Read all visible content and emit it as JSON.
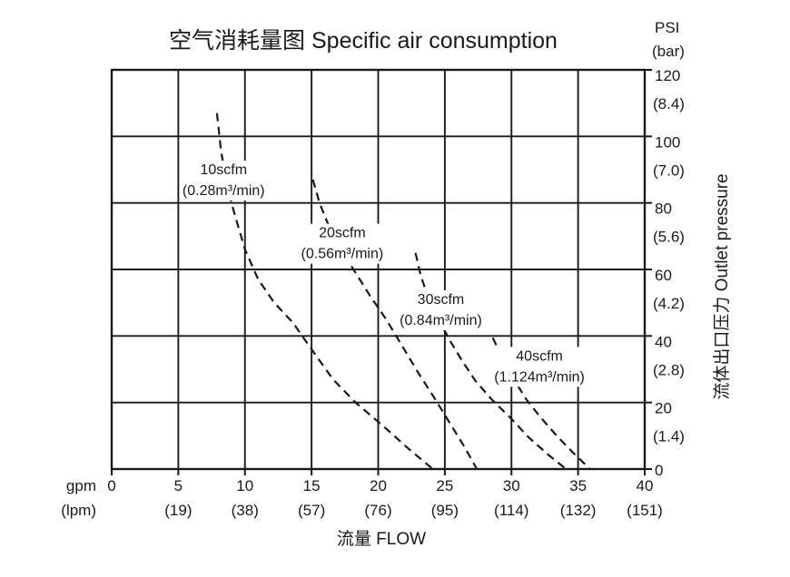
{
  "chart_data": {
    "type": "line",
    "title": "空气消耗量图 Specific air consumption",
    "grid": true,
    "line_style": "dashed",
    "line_color": "#1a1a1a",
    "x_axis": {
      "unit_primary": "gpm",
      "unit_secondary": "(lpm)",
      "title": "流量 FLOW",
      "range_gpm": [
        0,
        40
      ],
      "tick_step_gpm": 5,
      "ticks": [
        {
          "gpm": "0",
          "lpm": ""
        },
        {
          "gpm": "5",
          "lpm": "(19)"
        },
        {
          "gpm": "10",
          "lpm": "(38)"
        },
        {
          "gpm": "15",
          "lpm": "(57)"
        },
        {
          "gpm": "20",
          "lpm": "(76)"
        },
        {
          "gpm": "25",
          "lpm": "(95)"
        },
        {
          "gpm": "30",
          "lpm": "(114)"
        },
        {
          "gpm": "35",
          "lpm": "(132)"
        },
        {
          "gpm": "40",
          "lpm": "(151)"
        }
      ]
    },
    "y_axis": {
      "unit_primary": "PSI",
      "unit_secondary": "(bar)",
      "title": "流体出口压力 Outlet pressure",
      "range_psi": [
        0,
        120
      ],
      "tick_step_psi": 20,
      "ticks": [
        {
          "psi": "120",
          "bar": "(8.4)"
        },
        {
          "psi": "100",
          "bar": "(7.0)"
        },
        {
          "psi": "80",
          "bar": "(5.6)"
        },
        {
          "psi": "60",
          "bar": "(4.2)"
        },
        {
          "psi": "40",
          "bar": "(2.8)"
        },
        {
          "psi": "20",
          "bar": "(1.4)"
        },
        {
          "psi": "0",
          "bar": ""
        }
      ]
    },
    "series": [
      {
        "name": "10scfm",
        "label_line1": "10scfm",
        "label_line2": "(0.28m³/min)",
        "label_anchor_gpm_psi": [
          8.4,
          87
        ],
        "points_gpm_psi": [
          [
            7.9,
            107
          ],
          [
            8.2,
            96
          ],
          [
            8.6,
            86
          ],
          [
            9.2,
            77
          ],
          [
            10.0,
            66
          ],
          [
            11.0,
            57
          ],
          [
            12.2,
            50
          ],
          [
            13.6,
            44
          ],
          [
            15.0,
            36
          ],
          [
            16.6,
            27
          ],
          [
            18.3,
            20
          ],
          [
            20.5,
            12.5
          ],
          [
            22.3,
            6
          ],
          [
            24.1,
            0
          ]
        ]
      },
      {
        "name": "20scfm",
        "label_line1": "20scfm",
        "label_line2": "(0.56m³/min)",
        "label_anchor_gpm_psi": [
          17.3,
          68
        ],
        "points_gpm_psi": [
          [
            15.1,
            87
          ],
          [
            15.6,
            80
          ],
          [
            16.3,
            73
          ],
          [
            17.2,
            66
          ],
          [
            18.3,
            59
          ],
          [
            19.4,
            52
          ],
          [
            20.6,
            45
          ],
          [
            21.8,
            37
          ],
          [
            23.0,
            29
          ],
          [
            24.2,
            21.5
          ],
          [
            25.5,
            13
          ],
          [
            26.5,
            6.5
          ],
          [
            27.4,
            0
          ]
        ]
      },
      {
        "name": "30scfm",
        "label_line1": "30scfm",
        "label_line2": "(0.84m³/min)",
        "label_anchor_gpm_psi": [
          24.7,
          48
        ],
        "points_gpm_psi": [
          [
            22.8,
            65
          ],
          [
            23.2,
            58
          ],
          [
            23.8,
            51
          ],
          [
            24.6,
            44.5
          ],
          [
            25.4,
            38.5
          ],
          [
            26.3,
            32.5
          ],
          [
            27.3,
            26.5
          ],
          [
            28.5,
            21
          ],
          [
            29.9,
            15.5
          ],
          [
            31.3,
            9.5
          ],
          [
            32.7,
            4.5
          ],
          [
            34.1,
            0
          ]
        ]
      },
      {
        "name": "40scfm",
        "label_line1": "40scfm",
        "label_line2": "(1.124m³/min)",
        "label_anchor_gpm_psi": [
          32.1,
          31
        ],
        "points_gpm_psi": [
          [
            28.6,
            39.5
          ],
          [
            29.3,
            33.5
          ],
          [
            30.1,
            27.5
          ],
          [
            31.1,
            21
          ],
          [
            32.2,
            15.5
          ],
          [
            33.4,
            10
          ],
          [
            34.6,
            5
          ],
          [
            35.9,
            0
          ]
        ]
      }
    ]
  }
}
